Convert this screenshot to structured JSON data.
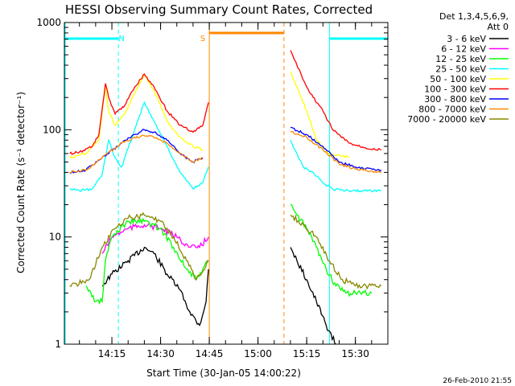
{
  "chart_data": {
    "type": "line",
    "title": "HESSI Observing Summary Count Rates, Corrected",
    "xlabel": "Start Time (30-Jan-05 14:00:22)",
    "ylabel": "Corrected Count Rate (s⁻¹ detector⁻¹)",
    "y_scale": "log",
    "ylim": [
      1,
      1000
    ],
    "xlim": [
      "14:00:22",
      "15:40:00"
    ],
    "x_tick_labels": [
      "14:15",
      "14:30",
      "14:45",
      "15:00",
      "15:15",
      "15:30"
    ],
    "y_tick_labels": [
      "1",
      "10",
      "100",
      "1000"
    ],
    "legend_title": [
      "Det 1,3,4,5,6,9,",
      "Att 0"
    ],
    "legend_position": "right",
    "footer_date": "26-Feb-2010 21:55",
    "annotations": [
      {
        "text": "N",
        "color": "#00ffff",
        "x": "14:18"
      },
      {
        "text": "S",
        "color": "#ff8800",
        "x": "14:43"
      }
    ],
    "flags": [
      {
        "type": "night",
        "color": "#00ffff",
        "start": "14:00:22",
        "end": "14:17:00"
      },
      {
        "type": "saa",
        "color": "#ff8800",
        "start": "14:45:00",
        "end": "15:08:00"
      },
      {
        "type": "night",
        "color": "#00ffff",
        "start": "15:22:00",
        "end": "15:40:00"
      }
    ],
    "series": [
      {
        "name": "3 - 6 keV",
        "color": "#000000",
        "points": [
          [
            "14:12",
            3.5
          ],
          [
            "14:15",
            4.5
          ],
          [
            "14:20",
            6
          ],
          [
            "14:25",
            8
          ],
          [
            "14:28",
            7
          ],
          [
            "14:32",
            4.5
          ],
          [
            "14:36",
            3.2
          ],
          [
            "14:39",
            2
          ],
          [
            "14:42",
            1.5
          ],
          [
            "14:44",
            2.5
          ],
          [
            "14:44:45",
            5
          ],
          [
            "15:10",
            8
          ],
          [
            "15:12",
            6
          ],
          [
            "15:15",
            4
          ],
          [
            "15:18",
            2.5
          ],
          [
            "15:21",
            1.5
          ],
          [
            "15:24",
            1
          ]
        ]
      },
      {
        "name": "6 - 12 keV",
        "color": "#ff00ff",
        "points": [
          [
            "14:12",
            7
          ],
          [
            "14:15",
            10
          ],
          [
            "14:20",
            12
          ],
          [
            "14:25",
            13
          ],
          [
            "14:30",
            12
          ],
          [
            "14:35",
            10
          ],
          [
            "14:39",
            8
          ],
          [
            "14:42",
            8
          ],
          [
            "14:44:45",
            10
          ]
        ]
      },
      {
        "name": "12 - 25 keV",
        "color": "#00ff00",
        "points": [
          [
            "14:07",
            3.5
          ],
          [
            "14:10",
            2.5
          ],
          [
            "14:12",
            2.5
          ],
          [
            "14:13",
            6
          ],
          [
            "14:15",
            10
          ],
          [
            "14:20",
            14
          ],
          [
            "14:25",
            14
          ],
          [
            "14:30",
            12
          ],
          [
            "14:34",
            8
          ],
          [
            "14:38",
            5
          ],
          [
            "14:41",
            4
          ],
          [
            "14:44:45",
            6
          ],
          [
            "15:10",
            20
          ],
          [
            "15:12",
            16
          ],
          [
            "15:15",
            12
          ],
          [
            "15:18",
            8
          ],
          [
            "15:21",
            5
          ],
          [
            "15:24",
            3.5
          ],
          [
            "15:27",
            3
          ],
          [
            "15:30",
            3
          ],
          [
            "15:35",
            3
          ]
        ]
      },
      {
        "name": "25 - 50 keV",
        "color": "#00ffff",
        "points": [
          [
            "14:02",
            28
          ],
          [
            "14:05",
            27
          ],
          [
            "14:09",
            28
          ],
          [
            "14:12",
            38
          ],
          [
            "14:14",
            80
          ],
          [
            "14:16",
            55
          ],
          [
            "14:18",
            45
          ],
          [
            "14:22",
            100
          ],
          [
            "14:25",
            180
          ],
          [
            "14:28",
            120
          ],
          [
            "14:32",
            70
          ],
          [
            "14:36",
            40
          ],
          [
            "14:40",
            28
          ],
          [
            "14:43",
            32
          ],
          [
            "14:44:45",
            45
          ],
          [
            "15:10",
            80
          ],
          [
            "15:12",
            60
          ],
          [
            "15:14",
            45
          ],
          [
            "15:17",
            40
          ],
          [
            "15:20",
            32
          ],
          [
            "15:23",
            28
          ],
          [
            "15:28",
            27
          ],
          [
            "15:33",
            27
          ],
          [
            "15:38",
            27
          ]
        ]
      },
      {
        "name": "50 - 100 keV",
        "color": "#ffff00",
        "points": [
          [
            "14:02",
            55
          ],
          [
            "14:07",
            60
          ],
          [
            "14:11",
            80
          ],
          [
            "14:13",
            250
          ],
          [
            "14:14",
            150
          ],
          [
            "14:16",
            110
          ],
          [
            "14:19",
            140
          ],
          [
            "14:22",
            220
          ],
          [
            "14:25",
            330
          ],
          [
            "14:28",
            230
          ],
          [
            "14:32",
            120
          ],
          [
            "14:36",
            85
          ],
          [
            "14:40",
            70
          ],
          [
            "14:43",
            65
          ],
          [
            "15:10",
            350
          ],
          [
            "15:12",
            250
          ],
          [
            "15:15",
            150
          ],
          [
            "15:18",
            80
          ],
          [
            "15:22",
            60
          ],
          [
            "15:28",
            55
          ],
          [
            "15:38",
            55
          ]
        ]
      },
      {
        "name": "100 - 300 keV",
        "color": "#ff0000",
        "points": [
          [
            "14:02",
            60
          ],
          [
            "14:05",
            62
          ],
          [
            "14:09",
            70
          ],
          [
            "14:11",
            90
          ],
          [
            "14:13",
            270
          ],
          [
            "14:14",
            200
          ],
          [
            "14:16",
            140
          ],
          [
            "14:19",
            170
          ],
          [
            "14:22",
            250
          ],
          [
            "14:25",
            330
          ],
          [
            "14:28",
            250
          ],
          [
            "14:32",
            150
          ],
          [
            "14:36",
            110
          ],
          [
            "14:40",
            95
          ],
          [
            "14:43",
            110
          ],
          [
            "14:44:45",
            180
          ],
          [
            "15:10",
            550
          ],
          [
            "15:12",
            400
          ],
          [
            "15:15",
            250
          ],
          [
            "15:17",
            200
          ],
          [
            "15:20",
            150
          ],
          [
            "15:23",
            100
          ],
          [
            "15:28",
            75
          ],
          [
            "15:33",
            68
          ],
          [
            "15:38",
            65
          ]
        ]
      },
      {
        "name": "300 - 800 keV",
        "color": "#0000ff",
        "points": [
          [
            "14:02",
            40
          ],
          [
            "14:07",
            42
          ],
          [
            "14:12",
            55
          ],
          [
            "14:18",
            75
          ],
          [
            "14:22",
            90
          ],
          [
            "14:25",
            100
          ],
          [
            "14:28",
            95
          ],
          [
            "14:32",
            80
          ],
          [
            "14:36",
            60
          ],
          [
            "14:40",
            50
          ],
          [
            "14:43",
            55
          ],
          [
            "15:10",
            105
          ],
          [
            "15:15",
            90
          ],
          [
            "15:20",
            70
          ],
          [
            "15:25",
            50
          ],
          [
            "15:30",
            45
          ],
          [
            "15:38",
            42
          ]
        ]
      },
      {
        "name": "800 - 7000 keV",
        "color": "#ff8800",
        "points": [
          [
            "14:02",
            40
          ],
          [
            "14:07",
            42
          ],
          [
            "14:12",
            55
          ],
          [
            "14:18",
            75
          ],
          [
            "14:22",
            85
          ],
          [
            "14:25",
            88
          ],
          [
            "14:28",
            85
          ],
          [
            "14:32",
            75
          ],
          [
            "14:36",
            60
          ],
          [
            "14:40",
            50
          ],
          [
            "14:43",
            55
          ],
          [
            "15:10",
            95
          ],
          [
            "15:15",
            85
          ],
          [
            "15:20",
            65
          ],
          [
            "15:25",
            48
          ],
          [
            "15:30",
            43
          ],
          [
            "15:38",
            40
          ]
        ]
      },
      {
        "name": "7000 - 20000 keV",
        "color": "#888800",
        "points": [
          [
            "14:02",
            3.5
          ],
          [
            "14:08",
            4
          ],
          [
            "14:12",
            8
          ],
          [
            "14:16",
            12
          ],
          [
            "14:20",
            15
          ],
          [
            "14:25",
            16
          ],
          [
            "14:30",
            14
          ],
          [
            "14:34",
            10
          ],
          [
            "14:38",
            6
          ],
          [
            "14:41",
            4
          ],
          [
            "14:44:45",
            6
          ],
          [
            "15:10",
            16
          ],
          [
            "15:14",
            13
          ],
          [
            "15:18",
            10
          ],
          [
            "15:22",
            6
          ],
          [
            "15:26",
            4
          ],
          [
            "15:30",
            3.5
          ],
          [
            "15:38",
            3.5
          ]
        ]
      }
    ]
  }
}
